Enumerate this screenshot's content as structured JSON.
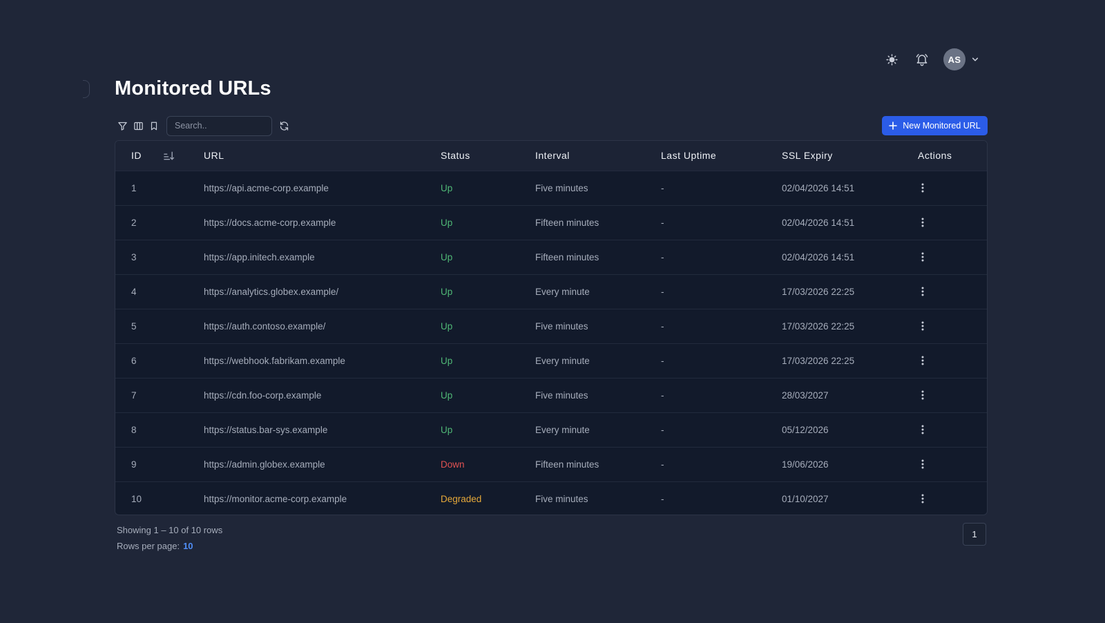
{
  "header": {
    "avatar_initials": "AS"
  },
  "page": {
    "title": "Monitored URLs"
  },
  "toolbar": {
    "search_placeholder": "Search..",
    "new_button_label": "New Monitored URL"
  },
  "table": {
    "columns": [
      "ID",
      "URL",
      "Status",
      "Interval",
      "Last Uptime",
      "SSL Expiry",
      "Actions"
    ],
    "rows": [
      {
        "id": "1",
        "url": "https://api.acme-corp.example",
        "status": "Up",
        "interval": "Five minutes",
        "last_uptime": "-",
        "ssl_expiry": "02/04/2026 14:51"
      },
      {
        "id": "2",
        "url": "https://docs.acme-corp.example",
        "status": "Up",
        "interval": "Fifteen minutes",
        "last_uptime": "-",
        "ssl_expiry": "02/04/2026 14:51"
      },
      {
        "id": "3",
        "url": "https://app.initech.example",
        "status": "Up",
        "interval": "Fifteen minutes",
        "last_uptime": "-",
        "ssl_expiry": "02/04/2026 14:51"
      },
      {
        "id": "4",
        "url": "https://analytics.globex.example/",
        "status": "Up",
        "interval": "Every minute",
        "last_uptime": "-",
        "ssl_expiry": "17/03/2026 22:25"
      },
      {
        "id": "5",
        "url": "https://auth.contoso.example/",
        "status": "Up",
        "interval": "Five minutes",
        "last_uptime": "-",
        "ssl_expiry": "17/03/2026 22:25"
      },
      {
        "id": "6",
        "url": "https://webhook.fabrikam.example",
        "status": "Up",
        "interval": "Every minute",
        "last_uptime": "-",
        "ssl_expiry": "17/03/2026 22:25"
      },
      {
        "id": "7",
        "url": "https://cdn.foo-corp.example",
        "status": "Up",
        "interval": "Five minutes",
        "last_uptime": "-",
        "ssl_expiry": "28/03/2027"
      },
      {
        "id": "8",
        "url": "https://status.bar-sys.example",
        "status": "Up",
        "interval": "Every minute",
        "last_uptime": "-",
        "ssl_expiry": "05/12/2026"
      },
      {
        "id": "9",
        "url": "https://admin.globex.example",
        "status": "Down",
        "interval": "Fifteen minutes",
        "last_uptime": "-",
        "ssl_expiry": "19/06/2026"
      },
      {
        "id": "10",
        "url": "https://monitor.acme-corp.example",
        "status": "Degraded",
        "interval": "Five minutes",
        "last_uptime": "-",
        "ssl_expiry": "01/10/2027"
      }
    ]
  },
  "footer": {
    "showing": "Showing 1 – 10 of 10 rows",
    "rows_per_page_label": "Rows per page:",
    "rows_per_page_value": "10",
    "current_page": "1"
  },
  "colors": {
    "background": "#1f2638",
    "accent": "#2b5ce8",
    "status_up": "#4fb876",
    "status_down": "#e05252",
    "status_degraded": "#e6a93a"
  }
}
